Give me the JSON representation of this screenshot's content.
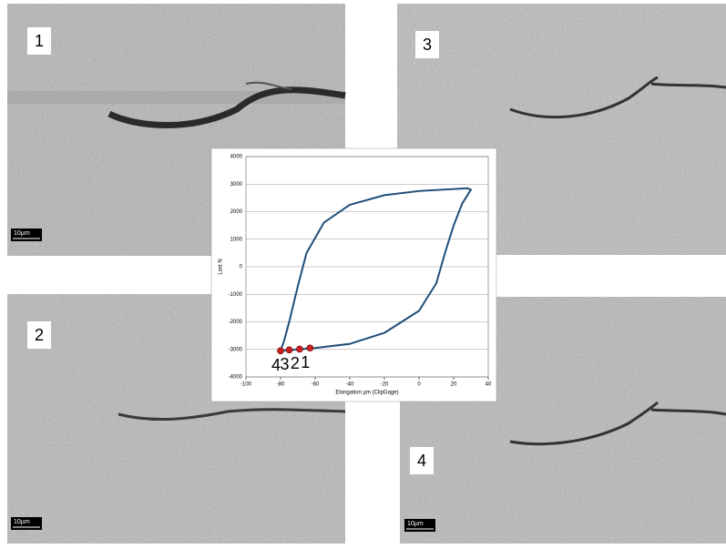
{
  "chart_data": {
    "type": "line",
    "xlabel": "Elongation µm (ClipGage)",
    "ylabel": "Last N",
    "xlim": [
      -100,
      40
    ],
    "xticks": [
      -100,
      -80,
      -60,
      -40,
      -20,
      0,
      20,
      40
    ],
    "ylim": [
      -4000,
      4000
    ],
    "yticks": [
      -4000,
      -3000,
      -2000,
      -1000,
      0,
      1000,
      2000,
      3000,
      4000
    ],
    "grid": true,
    "series": [
      {
        "color": "#1f4e79",
        "x": [
          -80,
          -60,
          -40,
          -20,
          0,
          10,
          15,
          20,
          25,
          30,
          28,
          0,
          -20,
          -40,
          -55,
          -65,
          -70,
          -75,
          -78,
          -80
        ],
        "values": [
          -3050,
          -2950,
          -2800,
          -2400,
          -1600,
          -600,
          500,
          1500,
          2300,
          2800,
          2850,
          2750,
          2600,
          2250,
          1600,
          500,
          -700,
          -2000,
          -2700,
          -3050
        ]
      }
    ],
    "points": {
      "color": "#cc1f1f",
      "x": [
        -80,
        -75,
        -69,
        -63
      ],
      "values": [
        -3050,
        -3020,
        -2990,
        -2950
      ],
      "labels": [
        "4",
        "3",
        "2",
        "1"
      ]
    }
  },
  "panels": [
    {
      "label": "1",
      "scale": "10µm"
    },
    {
      "label": "3"
    },
    {
      "label": "2",
      "scale": "10µm"
    },
    {
      "label": "4",
      "scale": "10µm"
    }
  ]
}
